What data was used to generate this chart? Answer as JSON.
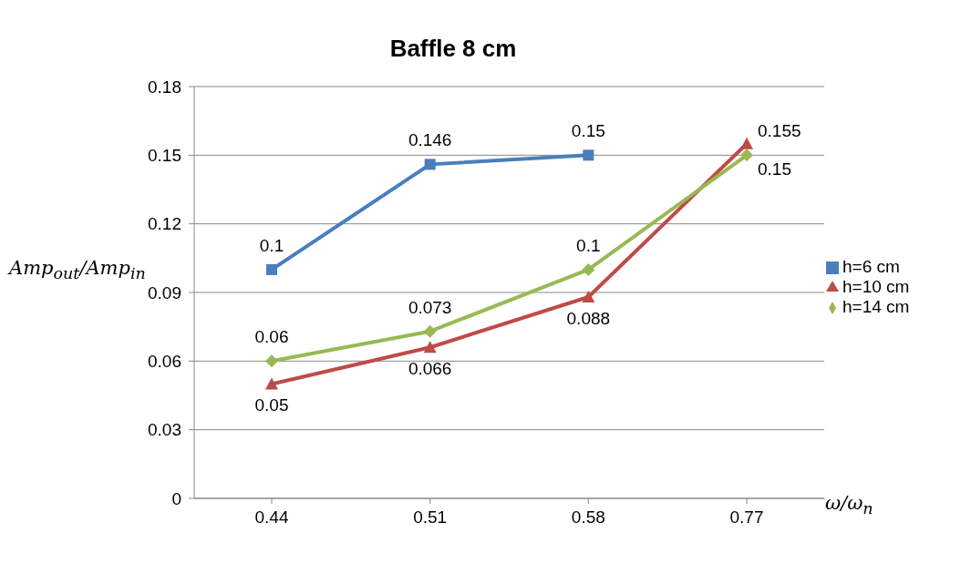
{
  "chart_data": {
    "type": "line",
    "title": "Baffle 8 cm",
    "xlabel": "ω/ω$_{n}$",
    "ylabel": "Amp$_{out}$/Amp$_{in}$",
    "categories": [
      "0.44",
      "0.51",
      "0.58",
      "0.77"
    ],
    "series": [
      {
        "name": "h=6 cm",
        "color": "#4a7ebb",
        "marker": "square",
        "values": [
          0.1,
          0.146,
          0.15,
          null
        ]
      },
      {
        "name": "h=10 cm",
        "color": "#be4b48",
        "marker": "triangle",
        "values": [
          0.05,
          0.066,
          0.088,
          0.155
        ]
      },
      {
        "name": "h=14 cm",
        "color": "#98b954",
        "marker": "diamond",
        "values": [
          0.06,
          0.073,
          0.1,
          0.15
        ]
      }
    ],
    "ylim": [
      0,
      0.18
    ],
    "yticks": [
      0,
      0.03,
      0.06,
      0.09,
      0.12,
      0.15,
      0.18
    ],
    "grid": "y",
    "legend": "right",
    "data_labels": true
  }
}
